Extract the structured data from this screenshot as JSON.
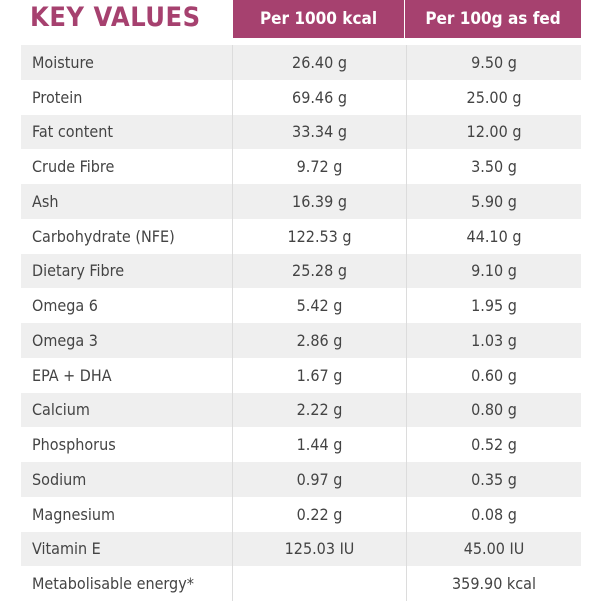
{
  "title": "KEY VALUES",
  "headers": [
    "Per 1000 kcal",
    "Per 100g as fed"
  ],
  "rows": [
    {
      "name": "Moisture",
      "per1000": "26.40 g",
      "per100": "9.50 g"
    },
    {
      "name": "Protein",
      "per1000": "69.46 g",
      "per100": "25.00 g"
    },
    {
      "name": "Fat content",
      "per1000": "33.34 g",
      "per100": "12.00 g"
    },
    {
      "name": "Crude Fibre",
      "per1000": "9.72 g",
      "per100": "3.50 g"
    },
    {
      "name": "Ash",
      "per1000": "16.39 g",
      "per100": "5.90 g"
    },
    {
      "name": "Carbohydrate (NFE)",
      "per1000": "122.53 g",
      "per100": "44.10 g"
    },
    {
      "name": "Dietary Fibre",
      "per1000": "25.28 g",
      "per100": "9.10 g"
    },
    {
      "name": "Omega 6",
      "per1000": "5.42 g",
      "per100": "1.95 g"
    },
    {
      "name": "Omega 3",
      "per1000": "2.86 g",
      "per100": "1.03 g"
    },
    {
      "name": "EPA + DHA",
      "per1000": "1.67 g",
      "per100": "0.60 g"
    },
    {
      "name": "Calcium",
      "per1000": "2.22 g",
      "per100": "0.80 g"
    },
    {
      "name": "Phosphorus",
      "per1000": "1.44 g",
      "per100": "0.52 g"
    },
    {
      "name": "Sodium",
      "per1000": "0.97 g",
      "per100": "0.35 g"
    },
    {
      "name": "Magnesium",
      "per1000": "0.22 g",
      "per100": "0.08 g"
    },
    {
      "name": "Vitamin E",
      "per1000": "125.03 IU",
      "per100": "45.00 IU"
    },
    {
      "name": "Metabolisable energy*",
      "per1000": "",
      "per100": "359.90 kcal"
    }
  ]
}
